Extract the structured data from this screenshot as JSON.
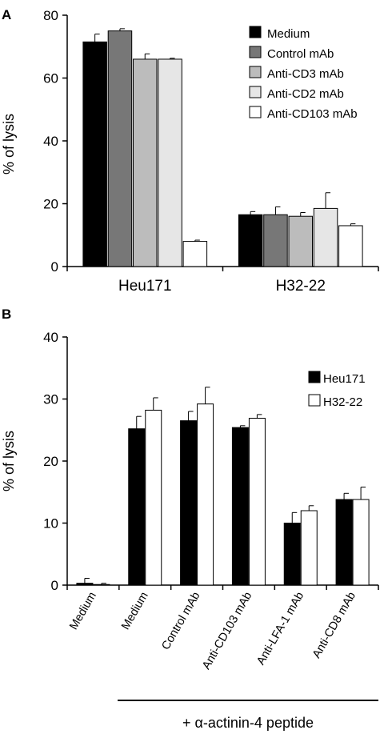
{
  "chart_data": [
    {
      "type": "bar",
      "panel_label": "A",
      "ylabel": "% of lysis",
      "ylim": [
        0,
        80
      ],
      "yticks": [
        "0",
        "20",
        "40",
        "60",
        "80"
      ],
      "categories": [
        "Heu171",
        "H32-22"
      ],
      "legend_position": "top-right",
      "series": [
        {
          "name": "Medium",
          "color": "#000000",
          "values": [
            71.5,
            16.5
          ],
          "errors": [
            2.5,
            1.0
          ]
        },
        {
          "name": "Control mAb",
          "color": "#777777",
          "values": [
            75.0,
            16.5
          ],
          "errors": [
            0.7,
            2.5
          ]
        },
        {
          "name": "Anti-CD3 mAb",
          "color": "#bcbcbc",
          "values": [
            66.0,
            16.0
          ],
          "errors": [
            1.7,
            1.2
          ]
        },
        {
          "name": "Anti-CD2 mAb",
          "color": "#e6e6e6",
          "values": [
            66.0,
            18.5
          ],
          "errors": [
            0.3,
            5.0
          ]
        },
        {
          "name": "Anti-CD103 mAb",
          "color": "#ffffff",
          "values": [
            8.0,
            13.0
          ],
          "errors": [
            0.4,
            0.6
          ]
        }
      ]
    },
    {
      "type": "bar",
      "panel_label": "B",
      "ylabel": "% of lysis",
      "ylim": [
        0,
        40
      ],
      "yticks": [
        "0",
        "10",
        "20",
        "30",
        "40"
      ],
      "categories": [
        "Medium",
        "Medium",
        "Control mAb",
        "Anti-CD103 mAb",
        "Anti-LFA-1 mAb",
        "Anti-CD8 mAb"
      ],
      "legend_position": "top-right",
      "series": [
        {
          "name": "Heu171",
          "color": "#000000",
          "values": [
            0.3,
            25.2,
            26.5,
            25.4,
            10.0,
            13.8
          ],
          "errors": [
            0.8,
            2.0,
            1.5,
            0.3,
            1.7,
            1.0
          ]
        },
        {
          "name": "H32-22",
          "color": "#ffffff",
          "values": [
            0.1,
            28.2,
            29.2,
            26.9,
            12.0,
            13.8
          ],
          "errors": [
            0.2,
            2.0,
            2.7,
            0.6,
            0.8,
            2.0
          ]
        }
      ],
      "group_label": "+ α-actinin-4 peptide"
    }
  ]
}
